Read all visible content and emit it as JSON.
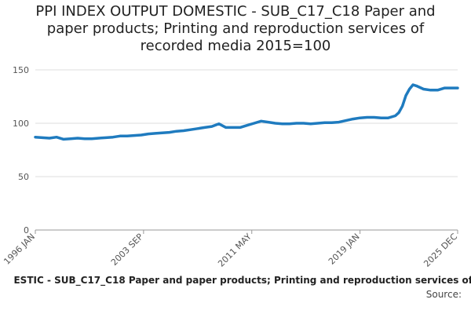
{
  "title_lines": [
    "PPI INDEX OUTPUT DOMESTIC - SUB_C17_C18 Paper and",
    "paper products; Printing and reproduction services of",
    "recorded media 2015=100"
  ],
  "footer": {
    "series_label": "ESTIC - SUB_C17_C18 Paper and paper products; Printing and reproduction services of",
    "source_label": "Source:"
  },
  "colors": {
    "line": "#1f7bbf",
    "grid": "#dddddd",
    "axis": "#999999"
  },
  "chart_data": {
    "type": "line",
    "title": "PPI INDEX OUTPUT DOMESTIC - SUB_C17_C18 Paper and paper products; Printing and reproduction services of recorded media 2015=100",
    "xlabel": "",
    "ylabel": "",
    "ylim": [
      0,
      150
    ],
    "yticks": [
      0,
      50,
      100,
      150
    ],
    "xlim": [
      "1996-01",
      "2025-12"
    ],
    "xticks": [
      "1996 JAN",
      "2003 SEP",
      "2011 MAY",
      "2019 JAN",
      "2025 DEC"
    ],
    "grid": "horizontal",
    "series": [
      {
        "x": [
          "1996-01",
          "1996-07",
          "1997-01",
          "1997-07",
          "1998-01",
          "1998-07",
          "1999-01",
          "1999-07",
          "2000-01",
          "2000-07",
          "2001-01",
          "2001-07",
          "2002-01",
          "2002-07",
          "2003-01",
          "2003-07",
          "2004-01",
          "2004-07",
          "2005-01",
          "2005-07",
          "2006-01",
          "2006-07",
          "2007-01",
          "2007-07",
          "2008-01",
          "2008-07",
          "2009-01",
          "2009-07",
          "2010-01",
          "2010-07",
          "2011-01",
          "2011-07",
          "2012-01",
          "2012-07",
          "2013-01",
          "2013-07",
          "2014-01",
          "2014-07",
          "2015-01",
          "2015-07",
          "2016-01",
          "2016-07",
          "2017-01",
          "2017-07",
          "2018-01",
          "2018-07",
          "2019-01",
          "2019-07",
          "2020-01",
          "2020-07",
          "2021-01",
          "2021-07",
          "2021-10",
          "2022-01",
          "2022-04",
          "2022-07",
          "2022-10",
          "2023-01",
          "2023-07",
          "2024-01",
          "2024-07",
          "2025-01",
          "2025-07",
          "2025-12"
        ],
        "y": [
          87,
          86.5,
          86,
          87,
          85,
          85.5,
          86,
          85.5,
          85.5,
          86,
          86.5,
          87,
          88,
          88,
          88.5,
          89,
          90,
          90.5,
          91,
          91.5,
          92.5,
          93,
          94,
          95,
          96,
          97,
          99.5,
          96,
          96,
          96,
          98,
          100,
          102,
          101,
          100,
          99.5,
          99.5,
          100,
          100,
          99.5,
          100,
          100.5,
          100.5,
          101,
          102.5,
          104,
          105,
          105.5,
          105.5,
          105,
          105,
          107,
          110,
          116,
          126,
          132,
          136,
          135,
          132,
          131,
          131,
          133,
          133,
          133
        ]
      }
    ]
  }
}
